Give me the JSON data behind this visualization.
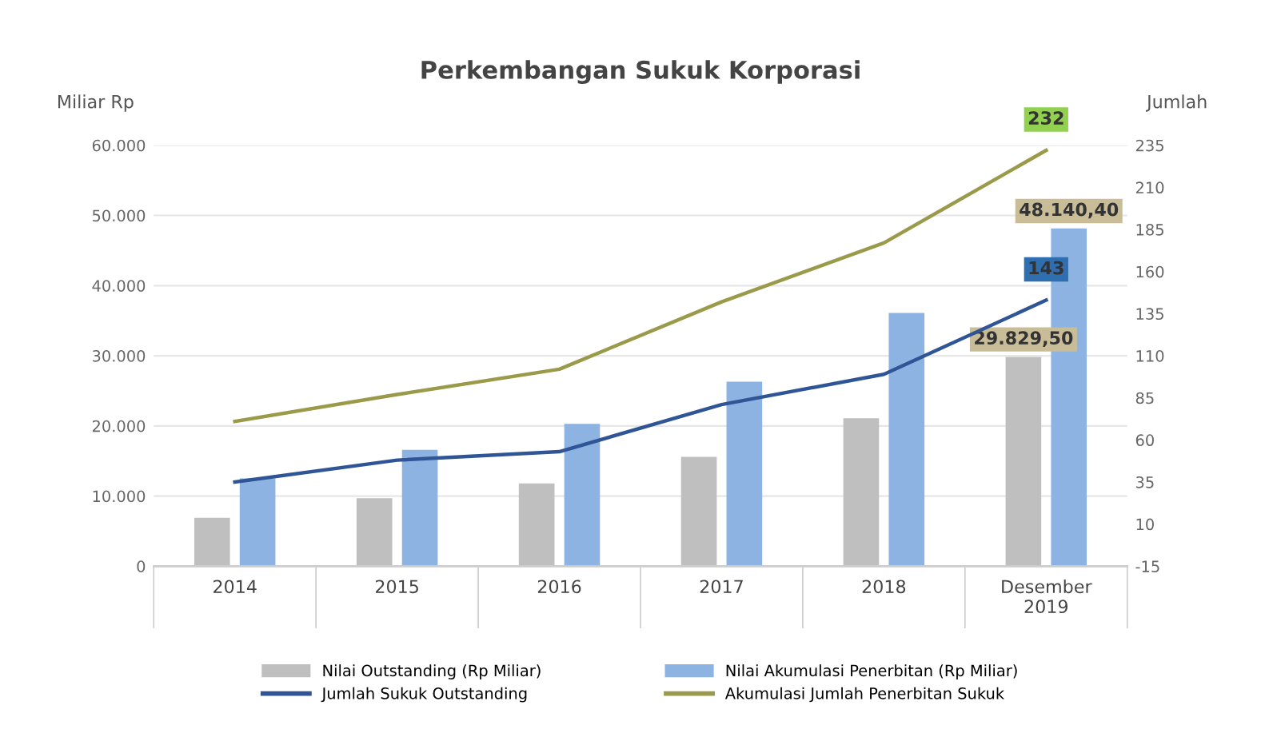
{
  "chart_data": {
    "type": "bar",
    "title": "Perkembangan Sukuk Korporasi",
    "ylabel": "Miliar Rp",
    "y2label": "Jumlah",
    "categories": [
      "2014",
      "2015",
      "2016",
      "2017",
      "2018",
      "Desember\n2019"
    ],
    "series": [
      {
        "name": "Nilai Outstanding (Rp Miliar)",
        "color": "#bfbfbf",
        "values": [
          6900,
          9700,
          11800,
          15600,
          21100,
          29829.5
        ],
        "value_labels": [
          null,
          null,
          null,
          null,
          null,
          "29.829,50"
        ]
      },
      {
        "name": "Nilai Akumulasi Penerbitan (Rp Miliar)",
        "color": "#8db3e2",
        "values": [
          12500,
          16600,
          20300,
          26300,
          36100,
          48140.4
        ],
        "value_labels": [
          null,
          null,
          null,
          null,
          null,
          "48.140,40"
        ]
      },
      {
        "name": "Jumlah Sukuk Outstanding",
        "type": "line",
        "axis": "y2",
        "color": "#2f5597",
        "values": [
          35,
          48,
          53,
          81,
          99,
          143
        ],
        "value_labels": [
          null,
          null,
          null,
          null,
          null,
          "143"
        ]
      },
      {
        "name": "Akumulasi Jumlah Penerbitan Sukuk",
        "type": "line",
        "axis": "y2",
        "color": "#9a9a4a",
        "values": [
          71,
          87,
          102,
          142,
          177,
          232
        ],
        "value_labels": [
          null,
          null,
          null,
          null,
          null,
          "232"
        ]
      }
    ],
    "ylim": [
      0,
      60000
    ],
    "yticks": [
      0,
      {
        "value": 10000,
        "label": "10.000"
      },
      {
        "value": 20000,
        "label": "20.000"
      },
      {
        "value": 30000,
        "label": "30.000"
      },
      {
        "value": 40000,
        "label": "40.000"
      },
      {
        "value": 50000,
        "label": "50.000"
      },
      {
        "value": 60000,
        "label": "60.000"
      }
    ],
    "y2lim": [
      -15,
      235
    ],
    "y2ticks": [
      -15,
      10,
      35,
      60,
      85,
      110,
      135,
      160,
      185,
      210,
      235
    ],
    "grid": "y",
    "legend": "bottom",
    "marker": "none",
    "line_style": "solid"
  }
}
